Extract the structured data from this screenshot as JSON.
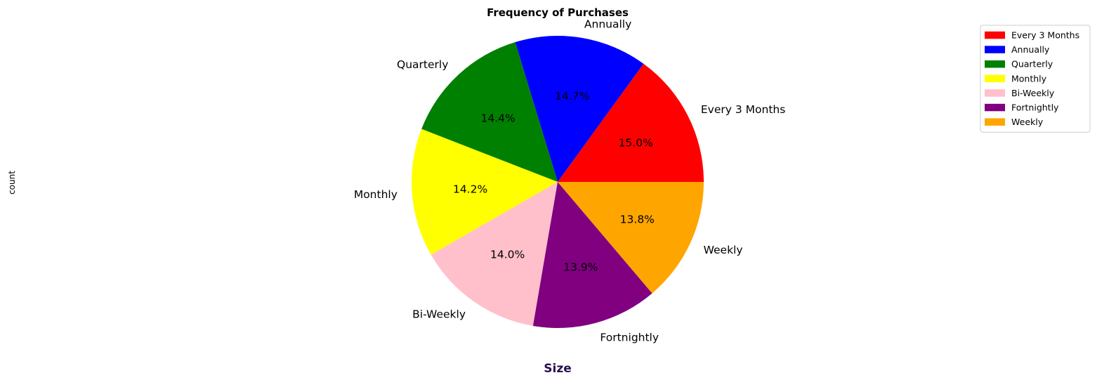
{
  "chart_data": {
    "type": "pie",
    "title": "Frequency of Purchases",
    "xlabel": "Size",
    "ylabel": "count",
    "start_angle_deg": 0,
    "direction": "counterclockwise",
    "legend_position": "top-right",
    "slices": [
      {
        "label": "Every 3 Months",
        "value": 15.0,
        "pct_label": "15.0%",
        "color": "#ff0000"
      },
      {
        "label": "Annually",
        "value": 14.7,
        "pct_label": "14.7%",
        "color": "#0000ff"
      },
      {
        "label": "Quarterly",
        "value": 14.4,
        "pct_label": "14.4%",
        "color": "#008000"
      },
      {
        "label": "Monthly",
        "value": 14.2,
        "pct_label": "14.2%",
        "color": "#ffff00"
      },
      {
        "label": "Bi-Weekly",
        "value": 14.0,
        "pct_label": "14.0%",
        "color": "#ffc0cb"
      },
      {
        "label": "Fortnightly",
        "value": 13.9,
        "pct_label": "13.9%",
        "color": "#800080"
      },
      {
        "label": "Weekly",
        "value": 13.8,
        "pct_label": "13.8%",
        "color": "#ffa500"
      }
    ]
  }
}
